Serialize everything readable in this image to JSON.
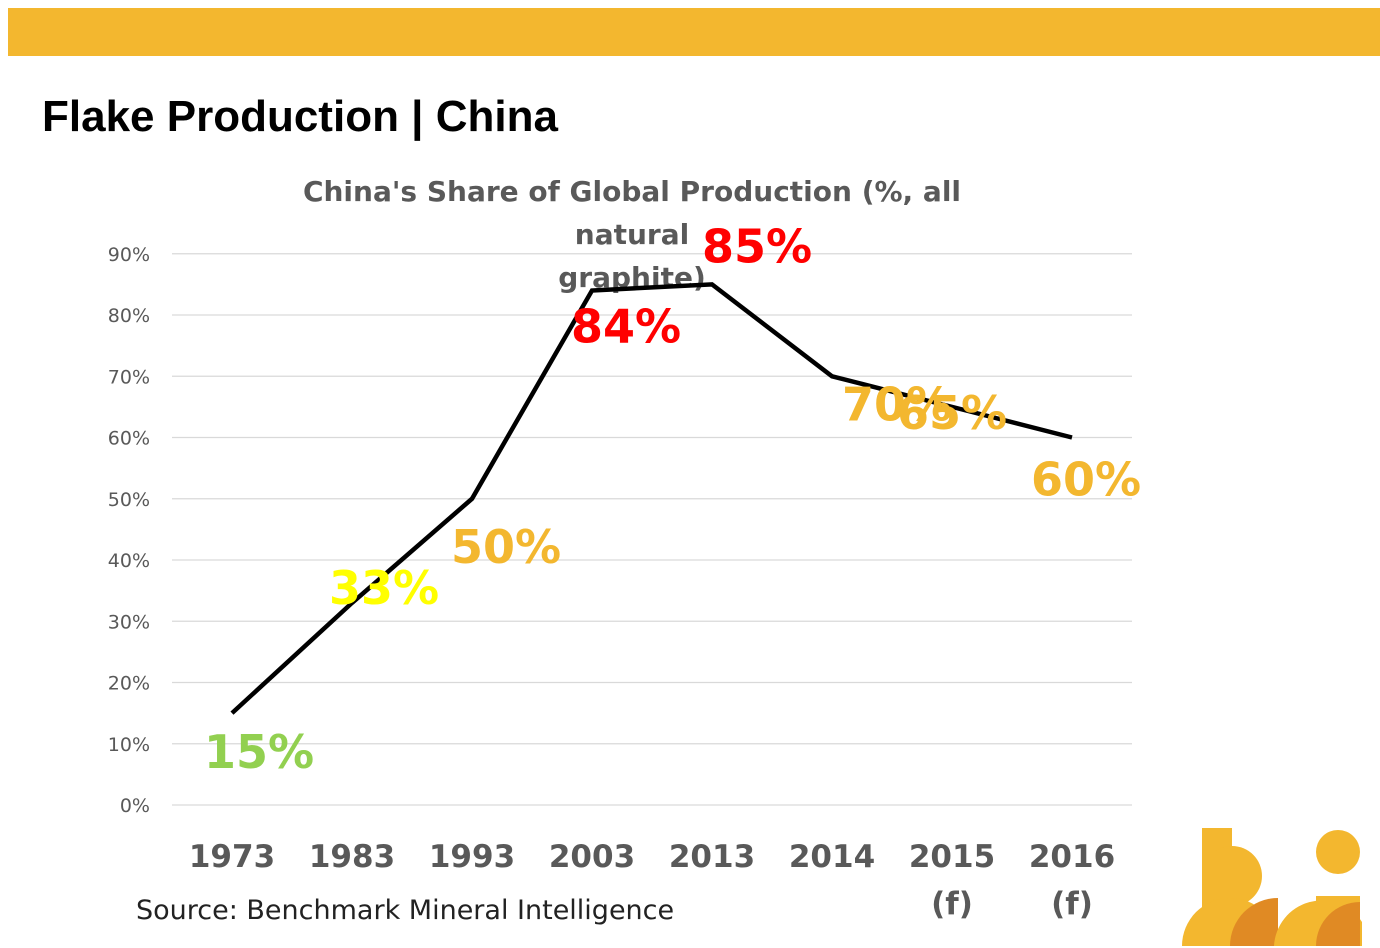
{
  "header": {
    "title": "Flake Production | China"
  },
  "source_note": "Source: Benchmark Mineral Intelligence",
  "colors": {
    "banner": "#f3b72f",
    "line": "#000000",
    "grid": "#d9d9d9",
    "green": "#92d050",
    "yellow": "#ffff00",
    "amber": "#f3b72f",
    "red": "#ff0000"
  },
  "chart_data": {
    "type": "line",
    "title_lines": [
      "China's Share of Global Production (%, all natural",
      "graphite)"
    ],
    "categories": [
      {
        "year": "1973",
        "note": ""
      },
      {
        "year": "1983",
        "note": ""
      },
      {
        "year": "1993",
        "note": ""
      },
      {
        "year": "2003",
        "note": ""
      },
      {
        "year": "2013",
        "note": ""
      },
      {
        "year": "2014",
        "note": ""
      },
      {
        "year": "2015",
        "note": "(f)"
      },
      {
        "year": "2016",
        "note": "(f)"
      }
    ],
    "values": [
      15,
      33,
      50,
      84,
      85,
      70,
      65,
      60
    ],
    "data_labels": [
      {
        "text": "15%",
        "color": "#92d050"
      },
      {
        "text": "33%",
        "color": "#ffff00"
      },
      {
        "text": "50%",
        "color": "#f3b72f"
      },
      {
        "text": "84%",
        "color": "#ff0000"
      },
      {
        "text": "85%",
        "color": "#ff0000"
      },
      {
        "text": "70%",
        "color": "#f3b72f"
      },
      {
        "text": "65%",
        "color": "#f3b72f"
      },
      {
        "text": "60%",
        "color": "#f3b72f"
      }
    ],
    "y_ticks": [
      "0%",
      "10%",
      "20%",
      "30%",
      "40%",
      "50%",
      "60%",
      "70%",
      "80%",
      "90%"
    ],
    "ylim": [
      0,
      90
    ],
    "grid": true,
    "legend": "none"
  }
}
